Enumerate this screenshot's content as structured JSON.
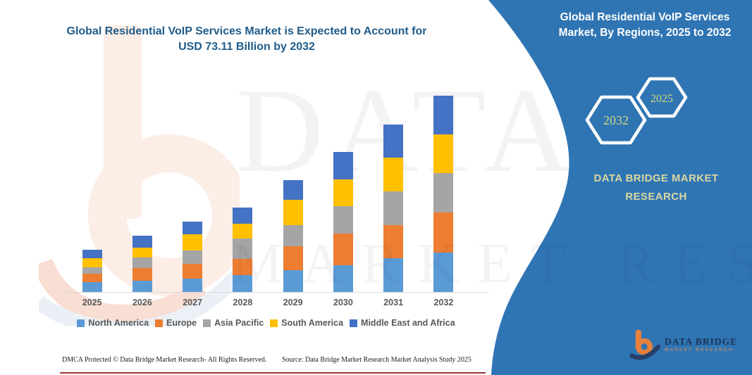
{
  "page_title": "Global Residential VoIP Services Market infographic",
  "chart_title": {
    "line1": "Global Residential VoIP Services Market is Expected to Account for",
    "line2": "USD 73.11 Billion by 2032"
  },
  "chart_data": {
    "type": "bar",
    "stacked": true,
    "unit": "USD Billion",
    "categories": [
      "2025",
      "2026",
      "2027",
      "2028",
      "2029",
      "2030",
      "2031",
      "2032"
    ],
    "series": [
      {
        "name": "North America",
        "color": "#5B9BD5",
        "values": [
          3.7,
          4.1,
          5.1,
          6.2,
          8.1,
          10.1,
          12.5,
          14.7
        ]
      },
      {
        "name": "Europe",
        "color": "#ED7D31",
        "values": [
          3.1,
          4.8,
          5.3,
          6.1,
          8.9,
          11.8,
          12.5,
          14.9
        ]
      },
      {
        "name": "Asia Pacific",
        "color": "#A5A5A5",
        "values": [
          2.4,
          3.9,
          5.0,
          7.6,
          7.9,
          10.1,
          12.4,
          14.6
        ]
      },
      {
        "name": "South America",
        "color": "#FFC000",
        "values": [
          3.3,
          3.8,
          6.1,
          5.5,
          9.5,
          10.1,
          12.7,
          14.4
        ]
      },
      {
        "name": "Middle East and Africa",
        "color": "#4472C4",
        "values": [
          3.3,
          4.5,
          4.8,
          6.1,
          7.2,
          10.2,
          12.3,
          14.51
        ]
      }
    ],
    "totals_estimated": [
      15.8,
      21.1,
      26.3,
      31.5,
      41.6,
      52.3,
      62.4,
      73.11
    ],
    "ylim": [
      0,
      73.11
    ],
    "grid": false,
    "y_axis_visible": false,
    "legend_position": "bottom",
    "axis_line_color": "#D9D9D9",
    "tick_label_color": "#595959"
  },
  "side_panel": {
    "title": "Global Residential VoIP Services Market, By Regions, 2025 to 2032",
    "hexagons": [
      {
        "label": "2032"
      },
      {
        "label": "2025"
      }
    ],
    "brand": "DATA BRIDGE MARKET RESEARCH",
    "colors": {
      "panel": "#2F75B4",
      "hex_border": "#FFFFFF",
      "hex_text": "#CFD97E",
      "brand_text": "#DAD7A0"
    }
  },
  "logo": {
    "icon": "data-bridge-b-logo",
    "name": "DATA BRIDGE",
    "subtitle": "MARKET RESEARCH",
    "colors": {
      "mark_orange": "#E8803E",
      "swoosh_navy": "#27406B",
      "text_navy": "#1C3356",
      "subtitle_orange": "#E8914C"
    }
  },
  "footer": {
    "dmca": "DMCA Protected © Data Bridge Market Research-  All Rights Reserved.",
    "source": "Source: Data Bridge Market Research  Market Analysis Study 2025",
    "bottom_line_color": "#9C3434"
  },
  "watermark": {
    "big_text": "DATA BRI",
    "row_text": "MARKET RESEARCH",
    "logo_icon": "data-bridge-b-watermark"
  }
}
